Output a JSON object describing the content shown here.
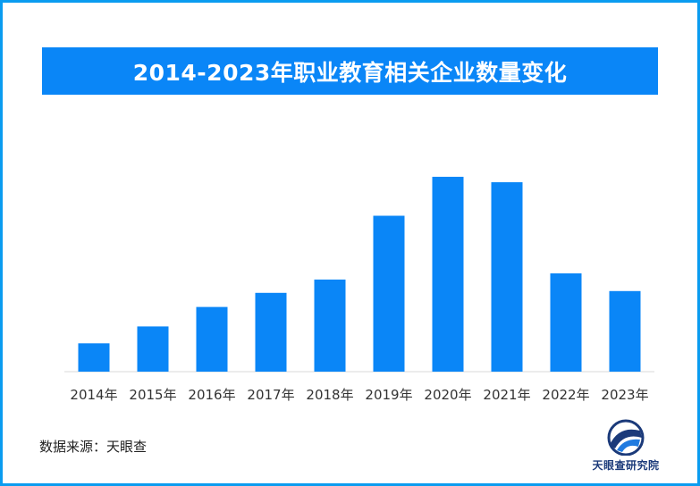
{
  "banner": {
    "title": "2014-2023年职业教育相关企业数量变化"
  },
  "source": {
    "text": "数据来源：天眼查"
  },
  "brand": {
    "name": "天眼查研究院",
    "logo_icon": "tianyancha-logo-icon"
  },
  "colors": {
    "frame": "#0a9cf0",
    "banner": "#0a86f7",
    "bar": "#0a86f7",
    "axis": "#d9d9d9"
  },
  "chart_data": {
    "type": "bar",
    "categories": [
      "2014年",
      "2015年",
      "2016年",
      "2017年",
      "2018年",
      "2019年",
      "2020年",
      "2021年",
      "2022年",
      "2023年"
    ],
    "values": [
      32,
      51,
      73,
      89,
      104,
      176,
      220,
      214,
      111,
      91
    ],
    "title": "2014-2023年职业教育相关企业数量变化",
    "xlabel": "",
    "ylabel": "",
    "ylim": [
      0,
      230
    ],
    "grid": false,
    "legend": "none",
    "value_note": "no y-axis or data labels shown; values are relative bar heights"
  }
}
